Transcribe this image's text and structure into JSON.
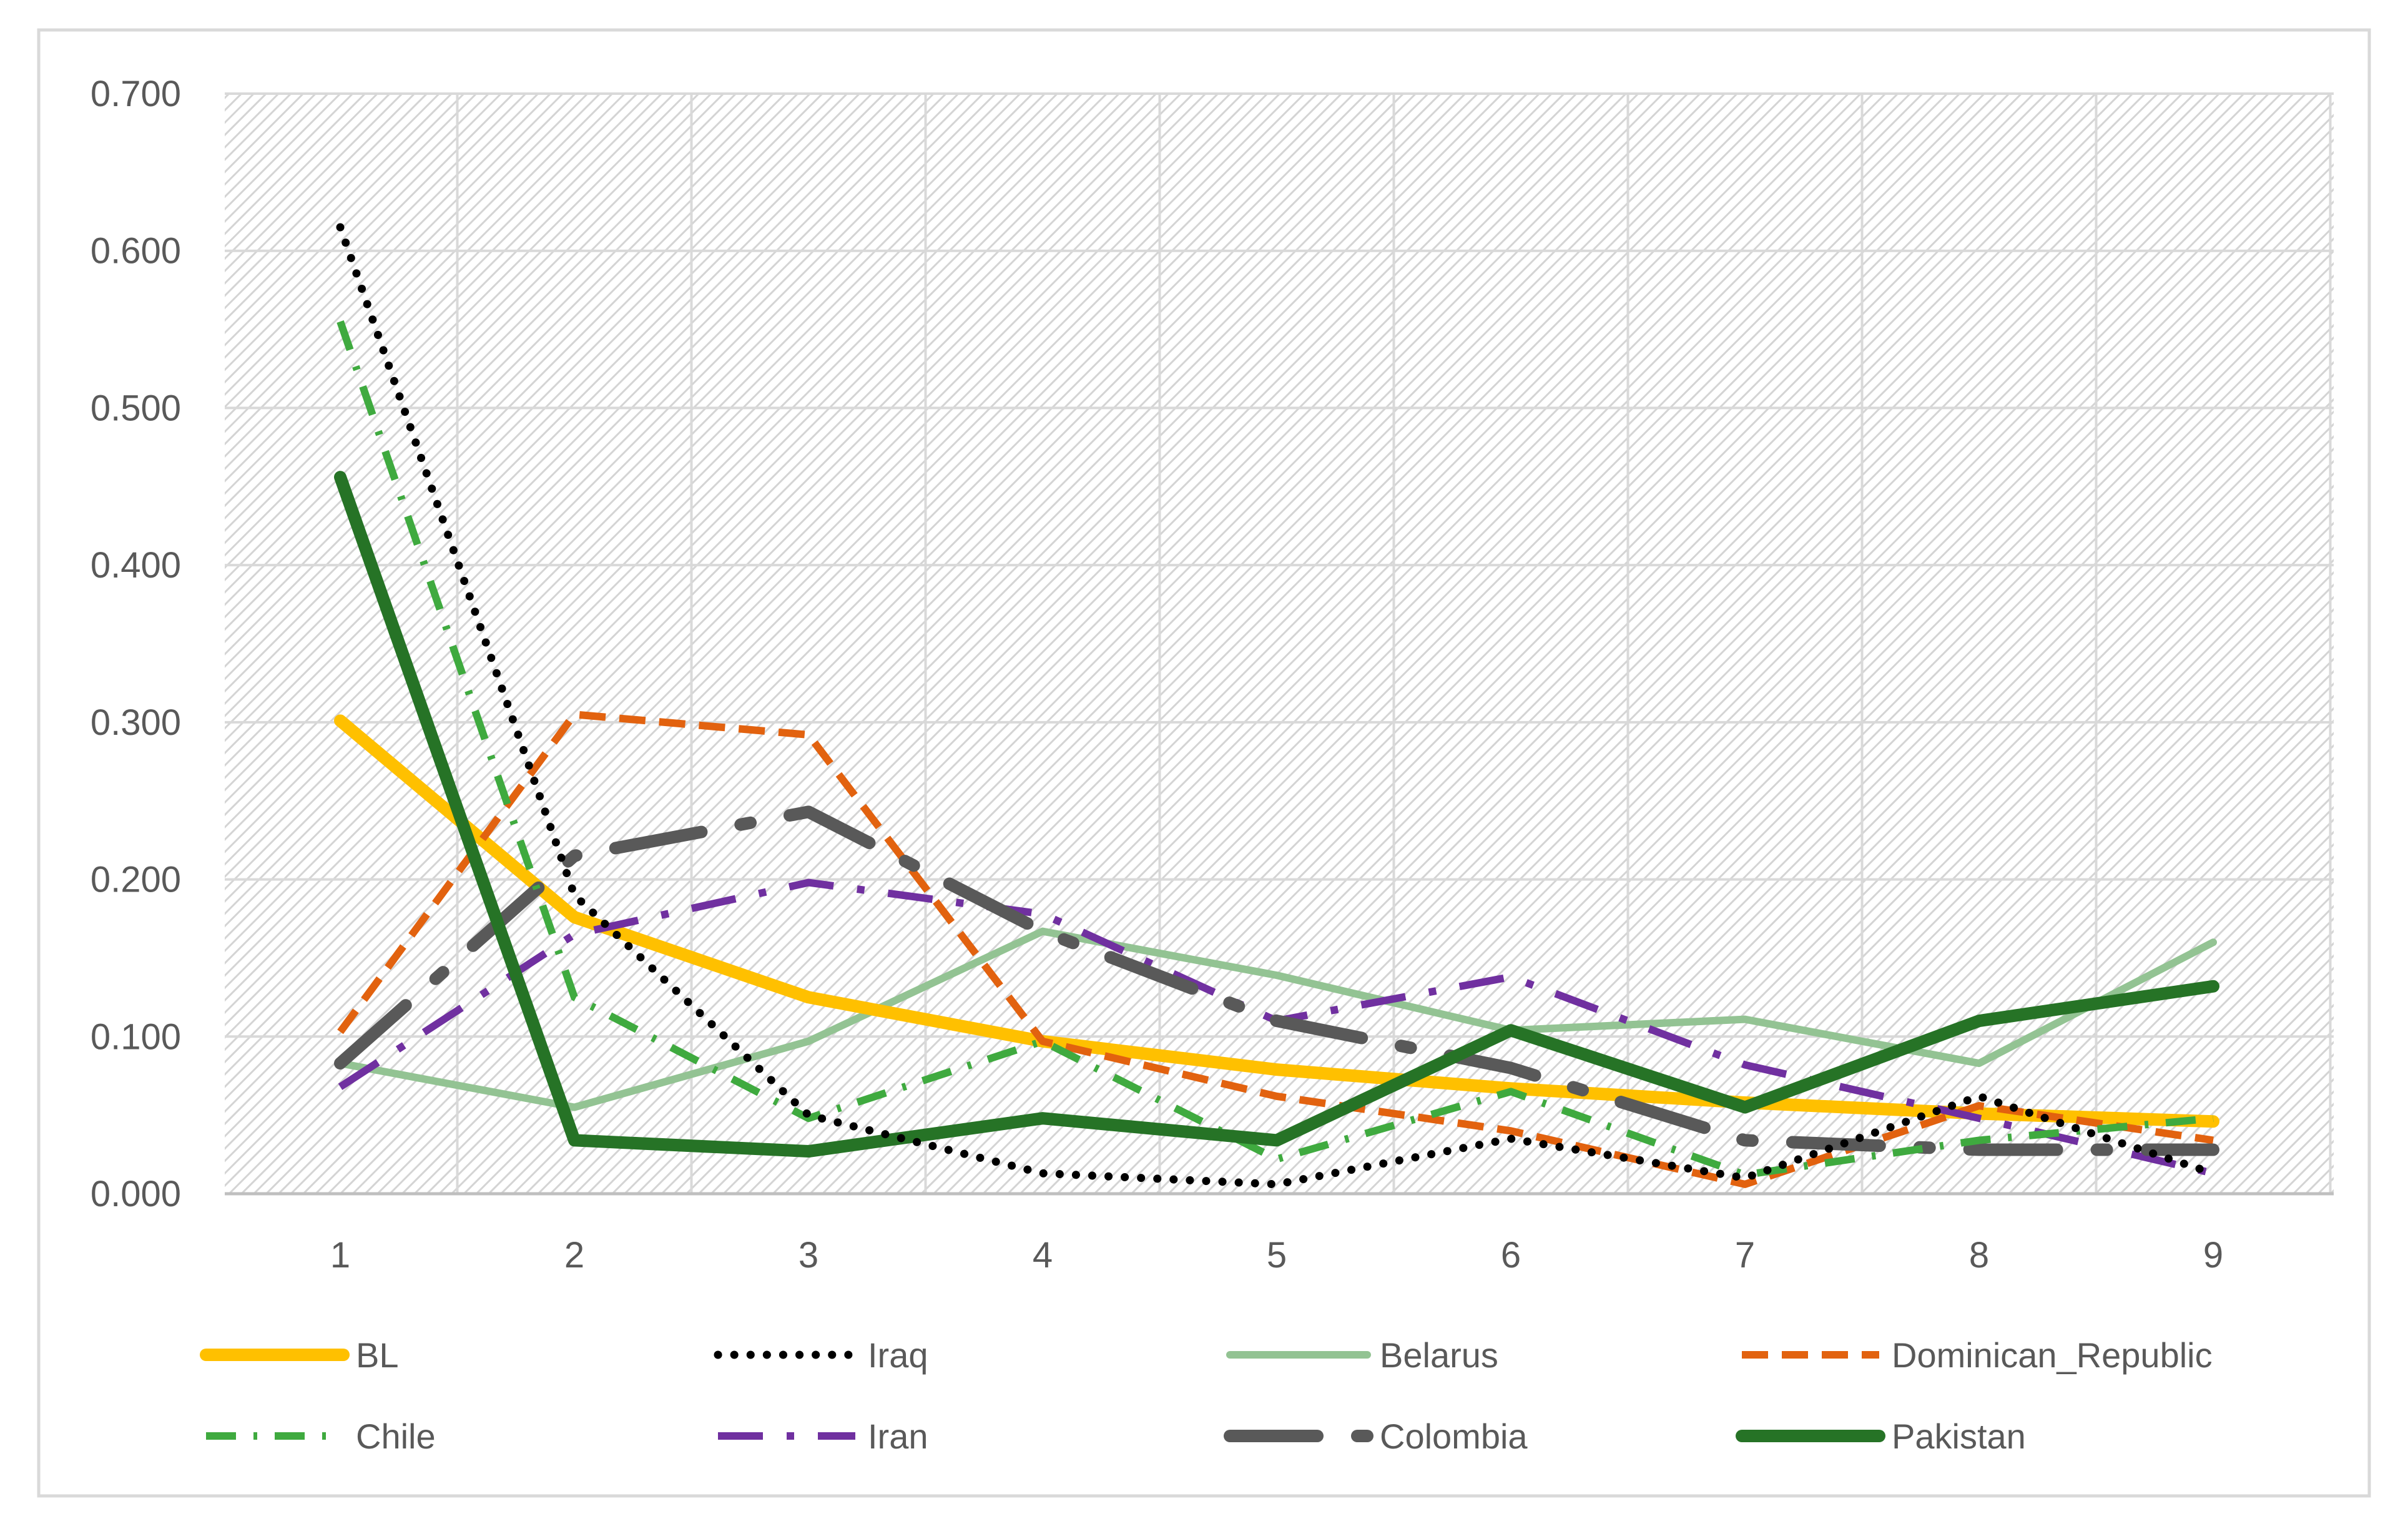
{
  "chart_data": {
    "type": "line",
    "title": "",
    "xlabel": "",
    "ylabel": "",
    "x": [
      1,
      2,
      3,
      4,
      5,
      6,
      7,
      8,
      9
    ],
    "ylim": [
      0,
      0.7
    ],
    "yticks": [
      "0.000",
      "0.100",
      "0.200",
      "0.300",
      "0.400",
      "0.500",
      "0.600",
      "0.700"
    ],
    "xticks": [
      "1",
      "2",
      "3",
      "4",
      "5",
      "6",
      "7",
      "8",
      "9"
    ],
    "grid": true,
    "legend_position": "bottom",
    "series": [
      {
        "name": "BL",
        "color": "#FFC000",
        "style": "solid-thick",
        "values": [
          0.301,
          0.176,
          0.125,
          0.097,
          0.079,
          0.067,
          0.058,
          0.051,
          0.046
        ]
      },
      {
        "name": "Iraq",
        "color": "#000000",
        "style": "dotted",
        "values": [
          0.615,
          0.19,
          0.05,
          0.013,
          0.006,
          0.035,
          0.01,
          0.062,
          0.013
        ]
      },
      {
        "name": "Belarus",
        "color": "#93C393",
        "style": "solid",
        "values": [
          0.083,
          0.055,
          0.097,
          0.167,
          0.139,
          0.104,
          0.111,
          0.083,
          0.16
        ]
      },
      {
        "name": "Dominican_Republic",
        "color": "#E2620F",
        "style": "dashed",
        "values": [
          0.103,
          0.305,
          0.292,
          0.097,
          0.062,
          0.04,
          0.006,
          0.056,
          0.034
        ]
      },
      {
        "name": "Chile",
        "color": "#3FAA3F",
        "style": "dash-dot",
        "values": [
          0.555,
          0.125,
          0.048,
          0.097,
          0.022,
          0.065,
          0.012,
          0.034,
          0.048
        ]
      },
      {
        "name": "Iran",
        "color": "#7030A0",
        "style": "long-dash-dot",
        "values": [
          0.068,
          0.165,
          0.198,
          0.178,
          0.11,
          0.138,
          0.082,
          0.048,
          0.013
        ]
      },
      {
        "name": "Colombia",
        "color": "#595959",
        "style": "long-dash-thick",
        "values": [
          0.083,
          0.215,
          0.243,
          0.167,
          0.11,
          0.08,
          0.034,
          0.028,
          0.028
        ]
      },
      {
        "name": "Pakistan",
        "color": "#267326",
        "style": "solid-thick",
        "values": [
          0.456,
          0.034,
          0.027,
          0.048,
          0.034,
          0.104,
          0.055,
          0.11,
          0.132
        ]
      }
    ]
  }
}
